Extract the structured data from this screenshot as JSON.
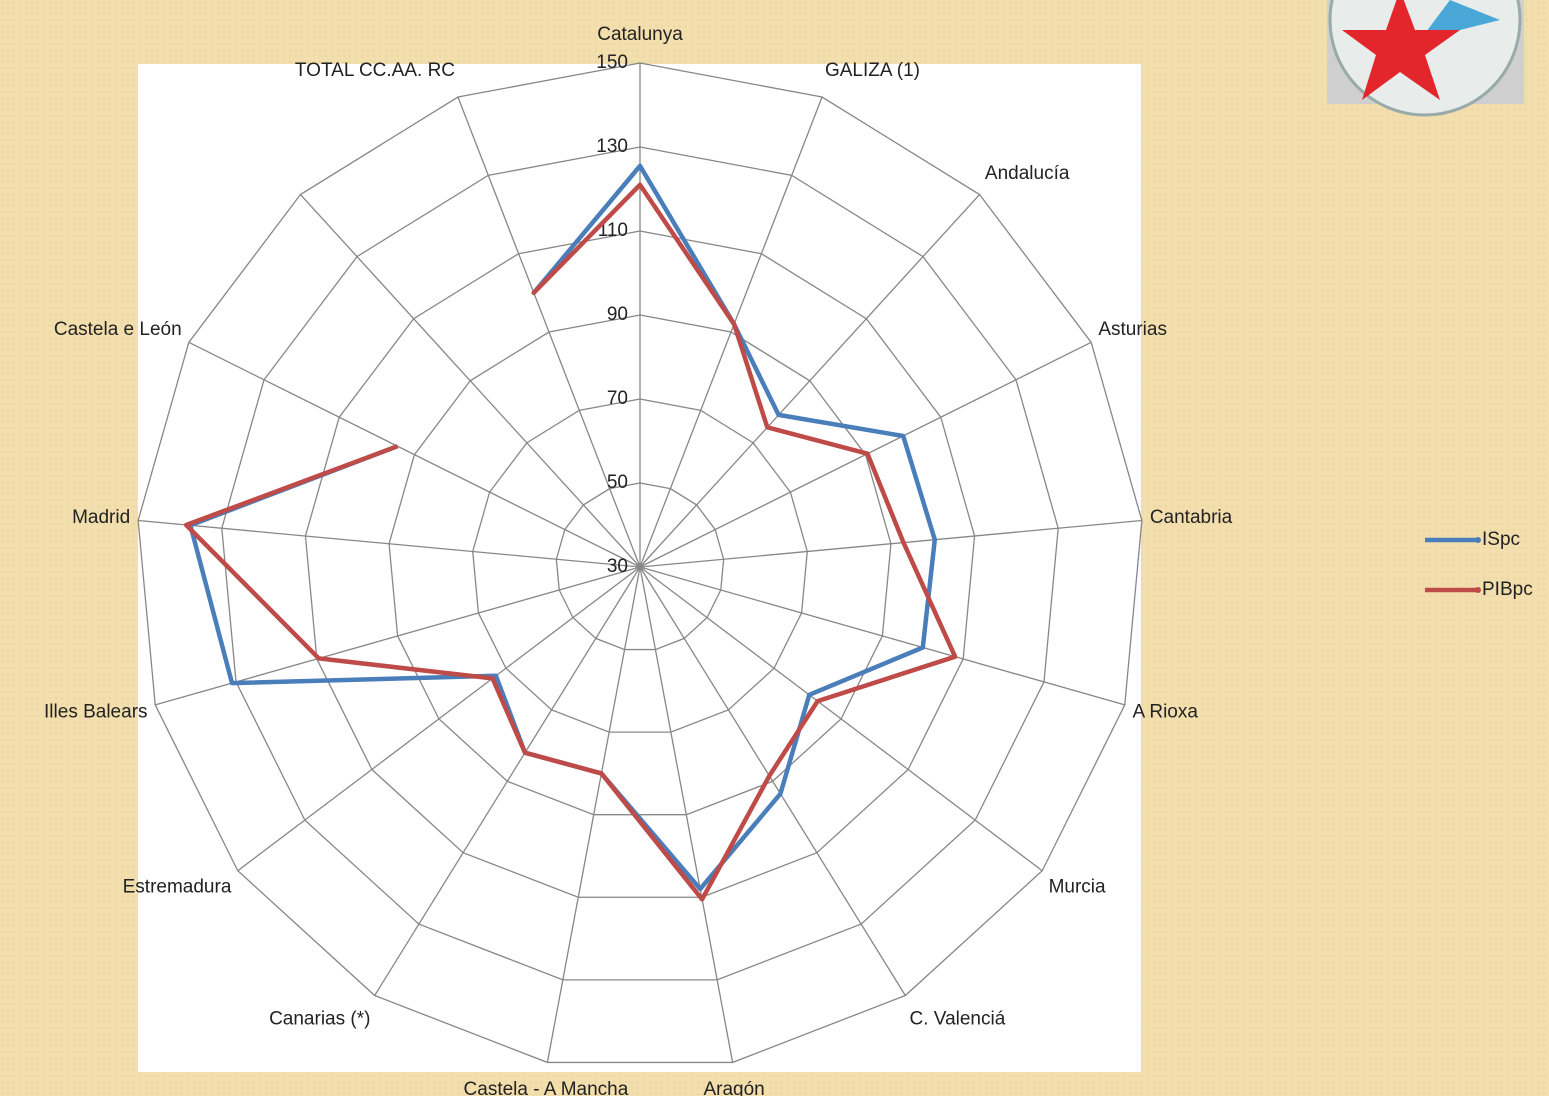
{
  "chart_data": {
    "type": "radar",
    "categories": [
      "Catalunya",
      "GALIZA (1)",
      "Andalucía",
      "Asturias",
      "Cantabria",
      "A Rioxa",
      "Murcia",
      "C. Valenciá",
      "Aragón",
      "Castela - A Mancha",
      "Canarias (*)",
      "Estremadura",
      "Illes Balears",
      "Madrid",
      "Castela e León",
      null,
      "TOTAL CC.AA.  RC"
    ],
    "series": [
      {
        "name": "ISpc",
        "color": "#4a7ebb",
        "values": [
          125.5,
          92,
          79,
          100,
          100.5,
          100,
          80.5,
          93.5,
          108,
          80,
          82,
          73,
          131,
          137.5,
          94.5,
          null,
          100
        ]
      },
      {
        "name": "PIBpc",
        "color": "#be4b48",
        "values": [
          121,
          92,
          75,
          90.5,
          93,
          108,
          83,
          88.5,
          110.5,
          80,
          82,
          74,
          109.5,
          138.5,
          94.5,
          null,
          100
        ]
      }
    ],
    "ylim": [
      30,
      150
    ],
    "yticks": [
      30,
      50,
      70,
      90,
      110,
      130,
      150
    ],
    "grid": true,
    "legend": "right"
  }
}
